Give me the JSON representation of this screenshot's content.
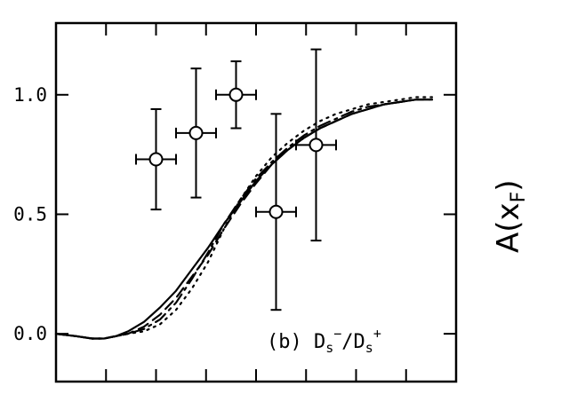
{
  "chart_data": {
    "type": "line",
    "title": "",
    "xlabel": "",
    "ylabel": "A(x_F)",
    "ylabel_main": "A(x",
    "ylabel_sub": "F",
    "ylabel_close": ")",
    "xlim": [
      0,
      1
    ],
    "ylim": [
      -0.2,
      1.3
    ],
    "y_ticks": [
      0.0,
      0.5,
      1.0
    ],
    "y_tick_labels": [
      "0.0",
      "0.5",
      "1.0"
    ],
    "x_ticks": [
      0.0,
      0.125,
      0.25,
      0.375,
      0.5,
      0.625,
      0.75,
      0.875,
      1.0
    ],
    "grid": false,
    "annotation": {
      "prefix": "(b) D",
      "sub1": "s",
      "sup1": "−",
      "middle": "/D",
      "sub2": "s",
      "sup2": "+"
    },
    "series": [
      {
        "style": "solid",
        "x": [
          0.0,
          0.05,
          0.09,
          0.12,
          0.15,
          0.18,
          0.22,
          0.26,
          0.3,
          0.34,
          0.38,
          0.42,
          0.46,
          0.5,
          0.54,
          0.58,
          0.62,
          0.66,
          0.7,
          0.74,
          0.78,
          0.82,
          0.86,
          0.9,
          0.94
        ],
        "y": [
          0.0,
          -0.01,
          -0.02,
          -0.02,
          -0.01,
          0.01,
          0.05,
          0.11,
          0.18,
          0.27,
          0.36,
          0.46,
          0.55,
          0.64,
          0.71,
          0.77,
          0.82,
          0.86,
          0.89,
          0.92,
          0.94,
          0.96,
          0.97,
          0.98,
          0.98
        ]
      },
      {
        "style": "dash",
        "x": [
          0.0,
          0.05,
          0.09,
          0.12,
          0.15,
          0.18,
          0.22,
          0.26,
          0.3,
          0.34,
          0.38,
          0.42,
          0.46,
          0.5,
          0.54,
          0.58,
          0.62,
          0.66,
          0.7,
          0.74,
          0.78,
          0.82,
          0.86,
          0.9,
          0.94
        ],
        "y": [
          0.0,
          -0.01,
          -0.02,
          -0.02,
          -0.01,
          0.0,
          0.03,
          0.08,
          0.15,
          0.24,
          0.33,
          0.44,
          0.54,
          0.63,
          0.71,
          0.77,
          0.82,
          0.86,
          0.89,
          0.92,
          0.94,
          0.96,
          0.97,
          0.98,
          0.98
        ]
      },
      {
        "style": "dashdot",
        "x": [
          0.0,
          0.05,
          0.09,
          0.12,
          0.15,
          0.18,
          0.22,
          0.26,
          0.3,
          0.34,
          0.38,
          0.42,
          0.46,
          0.5,
          0.54,
          0.58,
          0.62,
          0.66,
          0.7,
          0.74,
          0.78,
          0.82,
          0.86,
          0.9,
          0.94
        ],
        "y": [
          0.0,
          -0.01,
          -0.02,
          -0.02,
          -0.01,
          0.0,
          0.02,
          0.06,
          0.13,
          0.23,
          0.34,
          0.46,
          0.56,
          0.65,
          0.72,
          0.78,
          0.83,
          0.87,
          0.9,
          0.93,
          0.95,
          0.96,
          0.97,
          0.98,
          0.98
        ]
      },
      {
        "style": "dotted",
        "x": [
          0.0,
          0.05,
          0.09,
          0.12,
          0.15,
          0.18,
          0.22,
          0.26,
          0.3,
          0.34,
          0.38,
          0.42,
          0.46,
          0.5,
          0.54,
          0.58,
          0.62,
          0.66,
          0.7,
          0.74,
          0.78,
          0.82,
          0.86,
          0.9,
          0.94
        ],
        "y": [
          0.0,
          -0.01,
          -0.02,
          -0.02,
          -0.01,
          0.0,
          0.01,
          0.04,
          0.1,
          0.19,
          0.3,
          0.44,
          0.56,
          0.66,
          0.74,
          0.8,
          0.85,
          0.89,
          0.92,
          0.94,
          0.96,
          0.97,
          0.98,
          0.99,
          0.99
        ]
      }
    ],
    "data_points": [
      {
        "x": 0.25,
        "y": 0.73,
        "x_err": 0.05,
        "y_lo": 0.52,
        "y_hi": 0.94
      },
      {
        "x": 0.35,
        "y": 0.84,
        "x_err": 0.05,
        "y_lo": 0.57,
        "y_hi": 1.11
      },
      {
        "x": 0.45,
        "y": 1.0,
        "x_err": 0.05,
        "y_lo": 0.86,
        "y_hi": 1.14
      },
      {
        "x": 0.55,
        "y": 0.51,
        "x_err": 0.05,
        "y_lo": 0.1,
        "y_hi": 0.92
      },
      {
        "x": 0.65,
        "y": 0.79,
        "x_err": 0.05,
        "y_lo": 0.39,
        "y_hi": 1.19
      }
    ]
  }
}
